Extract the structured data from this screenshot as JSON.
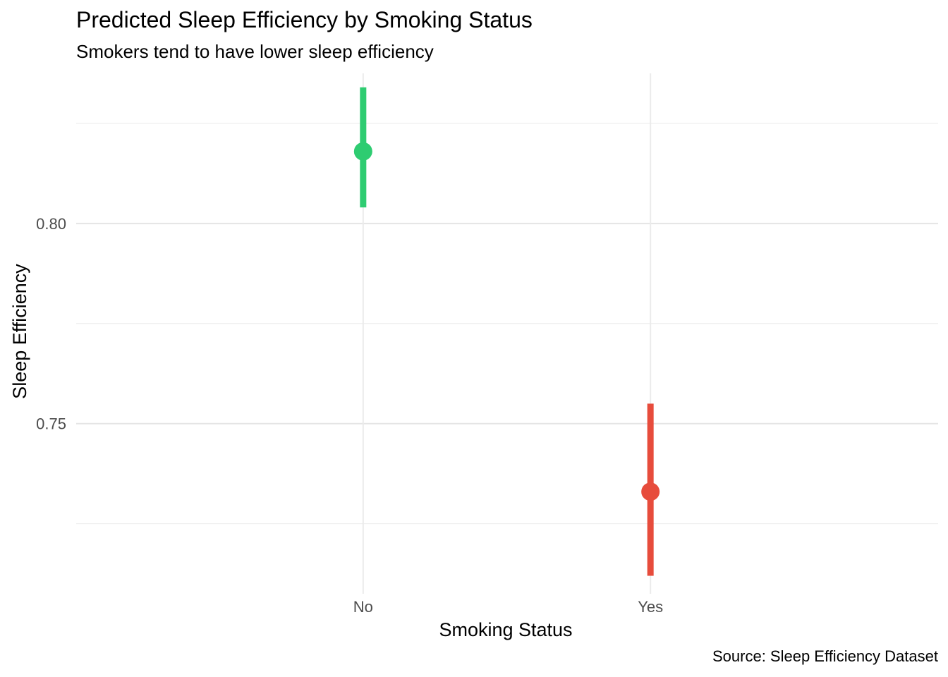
{
  "chart_data": {
    "type": "pointrange",
    "title": "Predicted Sleep Efficiency by Smoking Status",
    "subtitle": "Smokers tend to have lower sleep efficiency",
    "caption": "Source: Sleep Efficiency Dataset",
    "xlabel": "Smoking Status",
    "ylabel": "Sleep Efficiency",
    "categories": [
      "No",
      "Yes"
    ],
    "points": [
      {
        "category": "No",
        "value": 0.818,
        "lower": 0.804,
        "upper": 0.834,
        "color": "#2ECC71"
      },
      {
        "category": "Yes",
        "value": 0.733,
        "lower": 0.712,
        "upper": 0.755,
        "color": "#E74C3C"
      }
    ],
    "y_ticks": [
      0.75,
      0.8
    ],
    "y_tick_labels": [
      "0.75",
      "0.80"
    ],
    "ylim": [
      0.7075,
      0.8375
    ],
    "grid": true
  }
}
